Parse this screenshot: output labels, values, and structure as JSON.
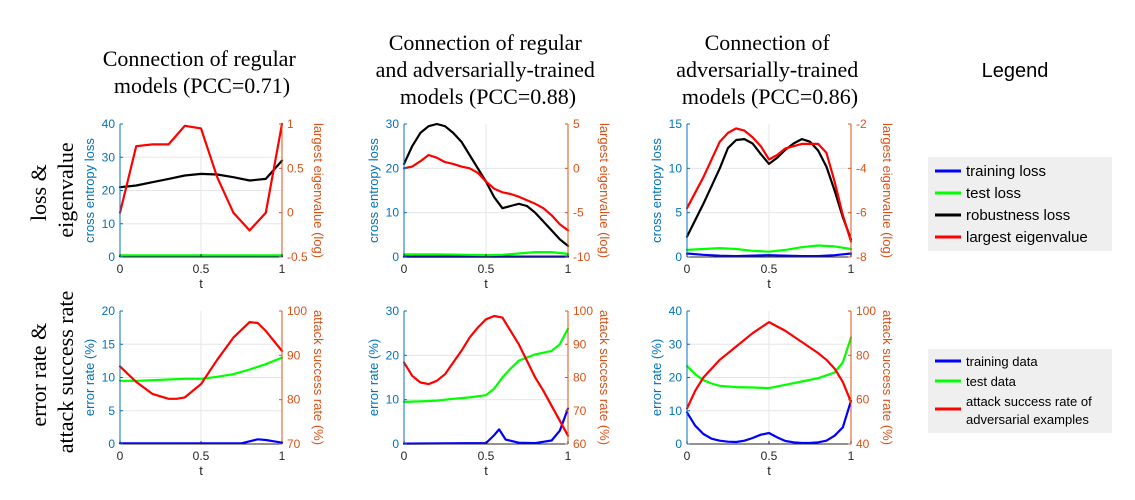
{
  "columns": [
    {
      "title": [
        "Connection of regular",
        "models (PCC=0.71)"
      ]
    },
    {
      "title": [
        "Connection of regular",
        "and adversarially-trained",
        "models (PCC=0.88)"
      ]
    },
    {
      "title": [
        "Connection of",
        "adversarially-trained",
        "models (PCC=0.86)"
      ]
    }
  ],
  "row_labels": [
    [
      "loss &",
      "eigenvalue"
    ],
    [
      "error rate &",
      "attack success rate"
    ]
  ],
  "legend": {
    "title": "Legend",
    "top": [
      "training loss",
      "test loss",
      "robustness loss",
      "largest eigenvalue"
    ],
    "bottom": [
      [
        "training data"
      ],
      [
        "test data"
      ],
      [
        "attack success rate of",
        "adversarial examples"
      ]
    ]
  },
  "colors": {
    "left_axis": "#0072BD",
    "right_axis": "#D95319",
    "training": "#0000ff",
    "test": "#00ff00",
    "robustness": "#000000",
    "eigen": "#ff0000",
    "legend_bg": "#efefef"
  },
  "chart_data": [
    {
      "type": "line",
      "id": "r1c1",
      "xlabel": "t",
      "xticks": [
        0,
        0.5,
        1
      ],
      "xticklabels": [
        "0",
        "0.5",
        "1"
      ],
      "ylabel_left": "cross entropy loss",
      "ylim_left": [
        0,
        40
      ],
      "yticks_left": [
        0,
        10,
        20,
        30,
        40
      ],
      "ylabel_right": "largest eigenvalue (log)",
      "ylim_right": [
        -0.5,
        1
      ],
      "yticks_right": [
        -0.5,
        0,
        0.5,
        1
      ],
      "series": [
        {
          "role": "training",
          "axis": "left",
          "x": [
            0,
            0.5,
            1
          ],
          "values": [
            0.2,
            0.2,
            0.2
          ]
        },
        {
          "role": "test",
          "axis": "left",
          "x": [
            0,
            0.5,
            1
          ],
          "values": [
            0.5,
            0.5,
            0.5
          ]
        },
        {
          "role": "robustness",
          "axis": "left",
          "x": [
            0,
            0.1,
            0.2,
            0.3,
            0.4,
            0.5,
            0.6,
            0.7,
            0.8,
            0.9,
            1.0
          ],
          "values": [
            21,
            21.5,
            22.5,
            23.5,
            24.5,
            25,
            24.8,
            24,
            23,
            23.5,
            29
          ]
        },
        {
          "role": "eigen",
          "axis": "right",
          "x": [
            0,
            0.1,
            0.2,
            0.3,
            0.4,
            0.5,
            0.6,
            0.7,
            0.8,
            0.9,
            1.0
          ],
          "values": [
            0.0,
            0.75,
            0.77,
            0.77,
            0.98,
            0.95,
            0.4,
            0.0,
            -0.2,
            0.0,
            1.0
          ]
        }
      ]
    },
    {
      "type": "line",
      "id": "r1c2",
      "xlabel": "t",
      "xticks": [
        0,
        0.5,
        1
      ],
      "xticklabels": [
        "0",
        "0.5",
        "1"
      ],
      "ylabel_left": "cross entropy loss",
      "ylim_left": [
        0,
        30
      ],
      "yticks_left": [
        0,
        10,
        20,
        30
      ],
      "ylabel_right": "largest eigenvalue (log)",
      "ylim_right": [
        -10,
        5
      ],
      "yticks_right": [
        -10,
        -5,
        0,
        5
      ],
      "series": [
        {
          "role": "training",
          "axis": "left",
          "x": [
            0,
            0.5,
            1
          ],
          "values": [
            0.1,
            0.1,
            0.1
          ]
        },
        {
          "role": "test",
          "axis": "left",
          "x": [
            0,
            0.2,
            0.4,
            0.5,
            0.6,
            0.7,
            0.8,
            0.9,
            1.0
          ],
          "values": [
            0.6,
            0.6,
            0.5,
            0.4,
            0.5,
            0.8,
            1.1,
            1.1,
            0.7
          ]
        },
        {
          "role": "robustness",
          "axis": "left",
          "x": [
            0,
            0.05,
            0.1,
            0.15,
            0.2,
            0.25,
            0.3,
            0.35,
            0.4,
            0.45,
            0.5,
            0.55,
            0.6,
            0.65,
            0.7,
            0.75,
            0.8,
            0.85,
            0.9,
            0.95,
            1.0
          ],
          "values": [
            21,
            25,
            28,
            29.5,
            30,
            29.5,
            28,
            26,
            23,
            20,
            17,
            13.5,
            11,
            11.5,
            12,
            11.5,
            10,
            8,
            6,
            4,
            2.5
          ]
        },
        {
          "role": "eigen",
          "axis": "right",
          "x": [
            0,
            0.05,
            0.1,
            0.15,
            0.2,
            0.25,
            0.3,
            0.35,
            0.4,
            0.45,
            0.5,
            0.55,
            0.6,
            0.65,
            0.7,
            0.75,
            0.8,
            0.85,
            0.9,
            0.95,
            1.0
          ],
          "values": [
            0,
            0.2,
            0.8,
            1.5,
            1.2,
            0.7,
            0.5,
            0.2,
            0,
            -0.5,
            -1.5,
            -2.3,
            -2.7,
            -2.9,
            -3.2,
            -3.6,
            -4.0,
            -4.5,
            -5.3,
            -6.3,
            -7.0
          ]
        }
      ]
    },
    {
      "type": "line",
      "id": "r1c3",
      "xlabel": "t",
      "xticks": [
        0,
        0.5,
        1
      ],
      "xticklabels": [
        "0",
        "0.5",
        "1"
      ],
      "ylabel_left": "cross entropy loss",
      "ylim_left": [
        0,
        15
      ],
      "yticks_left": [
        0,
        5,
        10,
        15
      ],
      "ylabel_right": "largest eigenvalue (log)",
      "ylim_right": [
        -8,
        -2
      ],
      "yticks_right": [
        -8,
        -6,
        -4,
        -2
      ],
      "series": [
        {
          "role": "training",
          "axis": "left",
          "x": [
            0,
            0.1,
            0.2,
            0.3,
            0.5,
            0.7,
            0.8,
            0.9,
            1.0
          ],
          "values": [
            0.4,
            0.25,
            0.15,
            0.1,
            0.2,
            0.1,
            0.1,
            0.2,
            0.4
          ]
        },
        {
          "role": "test",
          "axis": "left",
          "x": [
            0,
            0.1,
            0.2,
            0.3,
            0.4,
            0.5,
            0.6,
            0.7,
            0.8,
            0.9,
            1.0
          ],
          "values": [
            0.8,
            0.9,
            1.0,
            0.9,
            0.7,
            0.6,
            0.8,
            1.1,
            1.3,
            1.2,
            0.9
          ]
        },
        {
          "role": "robustness",
          "axis": "left",
          "x": [
            0,
            0.1,
            0.2,
            0.25,
            0.3,
            0.35,
            0.4,
            0.45,
            0.5,
            0.55,
            0.6,
            0.65,
            0.7,
            0.75,
            0.8,
            0.85,
            0.9,
            0.95,
            1.0
          ],
          "values": [
            2.3,
            6,
            10,
            12.3,
            13.2,
            13.3,
            12.8,
            11.6,
            10.5,
            11.2,
            12.1,
            12.8,
            13.3,
            13.0,
            12.0,
            10.2,
            7.5,
            4.5,
            2.0
          ]
        },
        {
          "role": "eigen",
          "axis": "right",
          "x": [
            0,
            0.1,
            0.2,
            0.25,
            0.3,
            0.35,
            0.4,
            0.45,
            0.5,
            0.55,
            0.6,
            0.65,
            0.7,
            0.75,
            0.8,
            0.85,
            0.9,
            0.95,
            1.0
          ],
          "values": [
            -5.8,
            -4.4,
            -2.8,
            -2.4,
            -2.2,
            -2.3,
            -2.6,
            -3.0,
            -3.6,
            -3.4,
            -3.1,
            -3.0,
            -2.9,
            -2.9,
            -2.9,
            -3.3,
            -4.6,
            -6.1,
            -7.3
          ]
        }
      ]
    },
    {
      "type": "line",
      "id": "r2c1",
      "xlabel": "t",
      "xticks": [
        0,
        0.5,
        1
      ],
      "xticklabels": [
        "0",
        "0.5",
        "1"
      ],
      "ylabel_left": "error rate (%)",
      "ylim_left": [
        0,
        20
      ],
      "yticks_left": [
        0,
        5,
        10,
        15,
        20
      ],
      "ylabel_right": "attack success rate (%)",
      "ylim_right": [
        70,
        100
      ],
      "yticks_right": [
        70,
        80,
        90,
        100
      ],
      "series": [
        {
          "role": "training",
          "axis": "left",
          "x": [
            0,
            0.5,
            0.75,
            0.8,
            0.85,
            0.9,
            0.95,
            1.0
          ],
          "values": [
            0.1,
            0.1,
            0.1,
            0.4,
            0.7,
            0.6,
            0.4,
            0.2
          ]
        },
        {
          "role": "test",
          "axis": "left",
          "x": [
            0,
            0.1,
            0.2,
            0.3,
            0.4,
            0.5,
            0.6,
            0.7,
            0.8,
            0.9,
            1.0
          ],
          "values": [
            9.5,
            9.5,
            9.6,
            9.7,
            9.8,
            9.8,
            10.1,
            10.5,
            11.2,
            12,
            13
          ]
        },
        {
          "role": "eigen",
          "axis": "right",
          "x": [
            0,
            0.1,
            0.2,
            0.3,
            0.35,
            0.4,
            0.5,
            0.6,
            0.7,
            0.8,
            0.85,
            0.9,
            1.0
          ],
          "values": [
            87.5,
            84,
            81.3,
            80.2,
            80.2,
            80.5,
            83.5,
            89,
            94,
            97.5,
            97.3,
            95.5,
            91
          ]
        }
      ]
    },
    {
      "type": "line",
      "id": "r2c2",
      "xlabel": "t",
      "xticks": [
        0,
        0.5,
        1
      ],
      "xticklabels": [
        "0",
        "0.5",
        "1"
      ],
      "ylabel_left": "error rate (%)",
      "ylim_left": [
        0,
        30
      ],
      "yticks_left": [
        0,
        10,
        20,
        30
      ],
      "ylabel_right": "attack success rate (%)",
      "ylim_right": [
        60,
        100
      ],
      "yticks_right": [
        60,
        70,
        80,
        90,
        100
      ],
      "series": [
        {
          "role": "training",
          "axis": "left",
          "x": [
            0,
            0.5,
            0.55,
            0.58,
            0.62,
            0.7,
            0.8,
            0.9,
            0.95,
            1.0
          ],
          "values": [
            0.1,
            0.2,
            2,
            3.3,
            1,
            0.3,
            0.2,
            0.8,
            3,
            8
          ]
        },
        {
          "role": "test",
          "axis": "left",
          "x": [
            0,
            0.1,
            0.2,
            0.3,
            0.4,
            0.5,
            0.55,
            0.6,
            0.65,
            0.7,
            0.8,
            0.9,
            0.95,
            1.0
          ],
          "values": [
            9.5,
            9.6,
            9.8,
            10.2,
            10.5,
            11,
            12.5,
            15,
            17,
            18.8,
            20.2,
            21,
            22.5,
            26
          ]
        },
        {
          "role": "eigen",
          "axis": "right",
          "x": [
            0,
            0.05,
            0.1,
            0.15,
            0.2,
            0.25,
            0.3,
            0.35,
            0.4,
            0.45,
            0.5,
            0.55,
            0.6,
            0.65,
            0.7,
            0.75,
            0.8,
            0.85,
            0.9,
            0.95,
            1.0
          ],
          "values": [
            84.5,
            80.5,
            78.5,
            78,
            79,
            81,
            84.5,
            88,
            92,
            95,
            97.5,
            98.5,
            98,
            94,
            90,
            85,
            80,
            76,
            71.5,
            67,
            62.5
          ]
        }
      ]
    },
    {
      "type": "line",
      "id": "r2c3",
      "xlabel": "t",
      "xticks": [
        0,
        0.5,
        1
      ],
      "xticklabels": [
        "0",
        "0.5",
        "1"
      ],
      "ylabel_left": "error rate (%)",
      "ylim_left": [
        0,
        40
      ],
      "yticks_left": [
        0,
        10,
        20,
        30,
        40
      ],
      "ylabel_right": "attack success rate (%)",
      "ylim_right": [
        40,
        100
      ],
      "yticks_right": [
        40,
        60,
        80,
        100
      ],
      "series": [
        {
          "role": "training",
          "axis": "left",
          "x": [
            0,
            0.05,
            0.1,
            0.15,
            0.2,
            0.25,
            0.3,
            0.35,
            0.4,
            0.45,
            0.5,
            0.55,
            0.6,
            0.65,
            0.7,
            0.75,
            0.8,
            0.85,
            0.9,
            0.95,
            1.0
          ],
          "values": [
            9.5,
            5.5,
            3,
            1.6,
            1,
            0.7,
            0.6,
            1,
            1.8,
            2.8,
            3.3,
            2,
            0.9,
            0.5,
            0.3,
            0.3,
            0.5,
            1,
            2.5,
            5,
            13
          ]
        },
        {
          "role": "test",
          "axis": "left",
          "x": [
            0,
            0.05,
            0.1,
            0.15,
            0.2,
            0.3,
            0.4,
            0.5,
            0.6,
            0.7,
            0.8,
            0.9,
            0.95,
            1.0
          ],
          "values": [
            23.5,
            21,
            19.2,
            18.2,
            17.5,
            17.1,
            17,
            16.8,
            17.8,
            18.8,
            19.8,
            21.5,
            24.5,
            32
          ]
        },
        {
          "role": "eigen",
          "axis": "right",
          "x": [
            0,
            0.05,
            0.1,
            0.2,
            0.3,
            0.4,
            0.5,
            0.6,
            0.7,
            0.8,
            0.85,
            0.9,
            0.95,
            1.0
          ],
          "values": [
            56,
            64,
            70,
            78,
            84,
            90,
            95,
            91,
            86,
            81,
            78,
            74,
            68,
            59
          ]
        }
      ]
    }
  ]
}
